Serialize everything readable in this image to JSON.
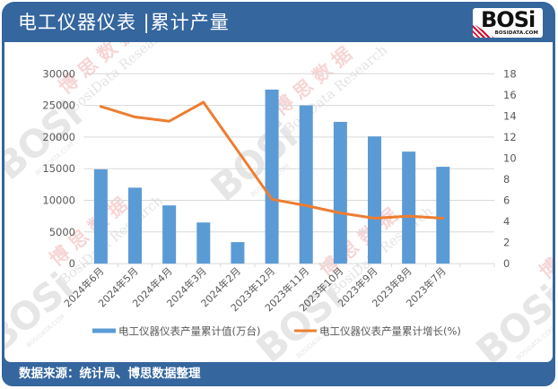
{
  "header": {
    "title": "电工仪器仪表 |累计产量",
    "logo_text": "BOSi",
    "logo_subtext": "BOSIDATA.COM"
  },
  "footer": {
    "source": "数据来源：统计局、博思数据整理"
  },
  "watermark": {
    "logo": "BOSi",
    "cn": "博思数据",
    "en": "BosiData Research",
    "site": "BOSIDATA.COM"
  },
  "colors": {
    "frame": "#35669e",
    "bar": "#5b9bd5",
    "line": "#ed7d31",
    "grid": "#d9d9d9",
    "axis_text": "#595959"
  },
  "chart_data": {
    "type": "bar",
    "secondary_type": "line",
    "title": "电工仪器仪表 |累计产量",
    "xlabel": "",
    "ylabel": "",
    "categories": [
      "2024年6月",
      "2024年5月",
      "2024年4月",
      "2024年3月",
      "2024年2月",
      "2023年12月",
      "2023年11月",
      "2023年10月",
      "2023年9月",
      "2023年8月",
      "2023年7月"
    ],
    "category_slots": 12,
    "series": [
      {
        "name": "电工仪器仪表产量累计值(万台)",
        "type": "bar",
        "axis": "left",
        "values": [
          14900,
          12000,
          9200,
          6500,
          3400,
          27500,
          25000,
          22400,
          20100,
          17700,
          15300
        ]
      },
      {
        "name": "电工仪器仪表产量累计增长(%)",
        "type": "line",
        "axis": "right",
        "values": [
          14.9,
          13.9,
          13.5,
          15.3,
          10.7,
          6.1,
          5.5,
          4.8,
          4.3,
          4.5,
          4.3
        ]
      }
    ],
    "y_left": {
      "min": 0,
      "max": 30000,
      "step": 5000,
      "ticks": [
        "0",
        "5000",
        "10000",
        "15000",
        "20000",
        "25000",
        "30000"
      ]
    },
    "y_right": {
      "min": 0,
      "max": 18,
      "step": 2,
      "ticks": [
        "0",
        "2",
        "4",
        "6",
        "8",
        "10",
        "12",
        "14",
        "16",
        "18"
      ]
    },
    "grid": true,
    "legend_position": "bottom"
  }
}
